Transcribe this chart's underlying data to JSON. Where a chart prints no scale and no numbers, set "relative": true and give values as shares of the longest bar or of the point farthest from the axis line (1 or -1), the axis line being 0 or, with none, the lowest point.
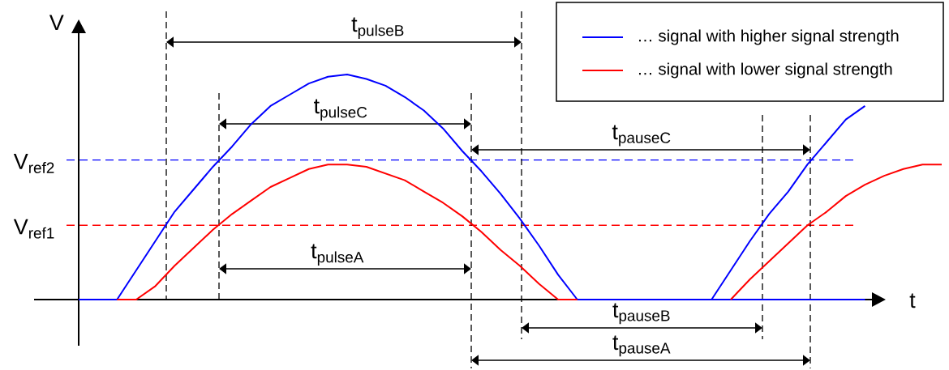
{
  "chart_data": {
    "type": "line",
    "relative": true,
    "xlabel": "t",
    "ylabel": "V",
    "legend": "top right",
    "categories": [
      null,
      null,
      null,
      null,
      null,
      null,
      null,
      null,
      null,
      null,
      null,
      null,
      null,
      null,
      null,
      null,
      null,
      null,
      null,
      null,
      null,
      null,
      null,
      null,
      null,
      null,
      null,
      null,
      null,
      null,
      null,
      null,
      null,
      null,
      null,
      null,
      null,
      null,
      null,
      null,
      null,
      null,
      null,
      null,
      null,
      null
    ],
    "series": [
      {
        "name": "… signal with higher signal strength",
        "color": "#0000ff",
        "values": [
          0,
          0,
          0,
          0.13,
          0.26,
          0.39,
          0.49,
          0.59,
          0.68,
          0.78,
          0.86,
          0.91,
          0.96,
          0.99,
          1,
          0.98,
          0.95,
          0.9,
          0.84,
          0.76,
          0.66,
          0.57,
          0.47,
          0.36,
          0.24,
          0.11,
          0,
          0,
          0,
          0,
          0,
          0,
          0,
          0,
          0,
          0,
          0,
          0,
          0,
          0,
          0,
          0,
          null,
          null,
          null,
          null
        ]
      },
      {
        "name": "… signal with lower signal strength",
        "color": "#ff0000",
        "values": [
          null,
          null,
          0,
          0,
          0.06,
          0.15,
          0.23,
          0.31,
          0.38,
          0.44,
          0.5,
          0.54,
          0.58,
          0.6,
          0.6,
          0.59,
          0.56,
          0.53,
          0.48,
          0.43,
          0.37,
          0.3,
          0.22,
          0.15,
          0.07,
          0,
          0,
          null,
          null,
          null,
          null,
          null,
          null,
          null,
          0,
          0.09,
          0.17,
          0.25,
          0.33,
          0.39,
          0.46,
          0.51,
          0.55,
          0.58,
          0.6,
          0.6
        ]
      },
      {
        "color": "#0000ff",
        "values": [
          null,
          null,
          null,
          null,
          null,
          null,
          null,
          null,
          null,
          null,
          null,
          null,
          null,
          null,
          null,
          null,
          null,
          null,
          null,
          null,
          null,
          null,
          null,
          null,
          null,
          null,
          null,
          null,
          null,
          null,
          null,
          null,
          null,
          0,
          0.13,
          0.26,
          0.38,
          0.48,
          0.6,
          0.7,
          0.8,
          0.86,
          null,
          null,
          null,
          null
        ]
      }
    ],
    "ref_lines": [
      {
        "axis": "y",
        "value": 0.62,
        "label": "V$_{ref2}$",
        "color": "#0000ff",
        "line_style": "dashed"
      },
      {
        "axis": "y",
        "value": 0.33,
        "label": "V$_{ref1}$",
        "color": "#ff0000",
        "line_style": "dashed"
      }
    ],
    "annotations": [
      "t$_{pulseB}$",
      "t$_{pulseC}$",
      "t$_{pulseA}$",
      "t$_{pauseC}$",
      "t$_{pauseB}$",
      "t$_{pauseA}$"
    ]
  }
}
